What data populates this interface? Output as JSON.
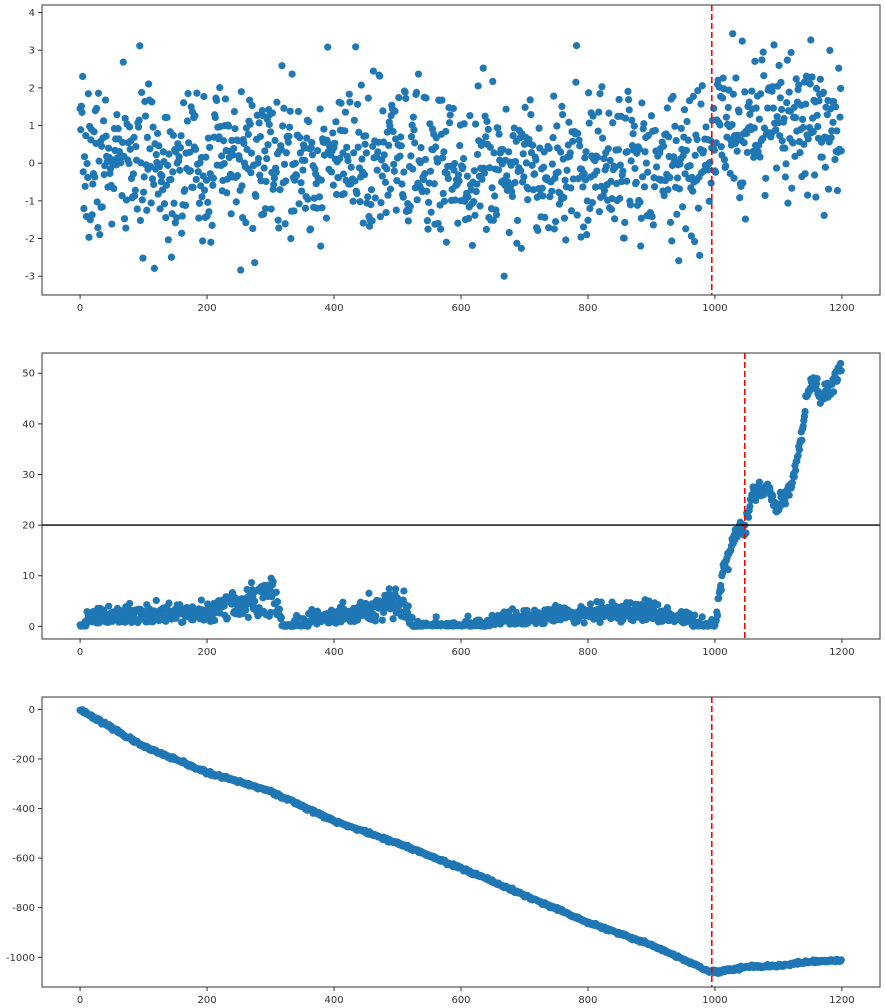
{
  "chart_data": [
    {
      "type": "scatter",
      "title": "",
      "xlabel": "",
      "ylabel": "",
      "xlim": [
        -60,
        1260
      ],
      "ylim": [
        -3.5,
        4.2
      ],
      "xticks": [
        0,
        200,
        400,
        600,
        800,
        1000,
        1200
      ],
      "yticks": [
        -3,
        -2,
        -1,
        0,
        1,
        2,
        3,
        4
      ],
      "grid": false,
      "series": [
        {
          "color": "#1f77b4",
          "x_range": [
            0,
            1199
          ],
          "n_points": 1200,
          "description": "noise ~ N(0,1) for x<995, ~N(0.9,1) after",
          "segment_means": [
            {
              "x_from": 0,
              "x_to": 994,
              "mean": 0.0,
              "std": 1.0
            },
            {
              "x_from": 995,
              "x_to": 1199,
              "mean": 0.9,
              "std": 1.0
            }
          ]
        }
      ],
      "annotations": [
        {
          "type": "vline",
          "x": 995,
          "color": "#ff0000",
          "style": "dashed"
        }
      ]
    },
    {
      "type": "scatter",
      "title": "",
      "xlabel": "",
      "ylabel": "",
      "xlim": [
        -60,
        1260
      ],
      "ylim": [
        -2.5,
        54
      ],
      "xticks": [
        0,
        200,
        400,
        600,
        800,
        1000,
        1200
      ],
      "yticks": [
        0,
        10,
        20,
        30,
        40,
        50
      ],
      "grid": false,
      "series": [
        {
          "color": "#1f77b4",
          "x_range": [
            0,
            1199
          ],
          "n_points": 1200,
          "key_points": [
            {
              "x": 0,
              "y": 0
            },
            {
              "x": 20,
              "y": 3
            },
            {
              "x": 200,
              "y": 4
            },
            {
              "x": 305,
              "y": 9.5
            },
            {
              "x": 320,
              "y": 0
            },
            {
              "x": 510,
              "y": 7
            },
            {
              "x": 525,
              "y": 0
            },
            {
              "x": 890,
              "y": 4.5
            },
            {
              "x": 1000,
              "y": 0
            },
            {
              "x": 1010,
              "y": 9
            },
            {
              "x": 1030,
              "y": 18
            },
            {
              "x": 1048,
              "y": 20
            },
            {
              "x": 1060,
              "y": 26
            },
            {
              "x": 1085,
              "y": 27
            },
            {
              "x": 1095,
              "y": 23
            },
            {
              "x": 1120,
              "y": 28
            },
            {
              "x": 1135,
              "y": 36
            },
            {
              "x": 1145,
              "y": 45
            },
            {
              "x": 1150,
              "y": 49
            },
            {
              "x": 1170,
              "y": 45
            },
            {
              "x": 1199,
              "y": 51
            }
          ]
        }
      ],
      "annotations": [
        {
          "type": "vline",
          "x": 1047,
          "color": "#ff0000",
          "style": "dashed"
        },
        {
          "type": "hline",
          "y": 20,
          "color": "#000000",
          "style": "solid"
        }
      ]
    },
    {
      "type": "scatter",
      "title": "",
      "xlabel": "",
      "ylabel": "",
      "xlim": [
        -60,
        1260
      ],
      "ylim": [
        -1120,
        50
      ],
      "xticks": [
        0,
        200,
        400,
        600,
        800,
        1000,
        1200
      ],
      "yticks": [
        -1000,
        -800,
        -600,
        -400,
        -200,
        0
      ],
      "grid": false,
      "series": [
        {
          "color": "#1f77b4",
          "x_range": [
            0,
            1199
          ],
          "n_points": 1200,
          "key_points": [
            {
              "x": 0,
              "y": 0
            },
            {
              "x": 100,
              "y": -150
            },
            {
              "x": 200,
              "y": -255
            },
            {
              "x": 300,
              "y": -330
            },
            {
              "x": 400,
              "y": -450
            },
            {
              "x": 500,
              "y": -540
            },
            {
              "x": 600,
              "y": -640
            },
            {
              "x": 700,
              "y": -750
            },
            {
              "x": 800,
              "y": -860
            },
            {
              "x": 900,
              "y": -950
            },
            {
              "x": 995,
              "y": -1062
            },
            {
              "x": 1050,
              "y": -1040
            },
            {
              "x": 1100,
              "y": -1035
            },
            {
              "x": 1150,
              "y": -1018
            },
            {
              "x": 1199,
              "y": -1012
            }
          ]
        }
      ],
      "annotations": [
        {
          "type": "vline",
          "x": 995,
          "color": "#ff0000",
          "style": "dashed"
        }
      ]
    }
  ]
}
